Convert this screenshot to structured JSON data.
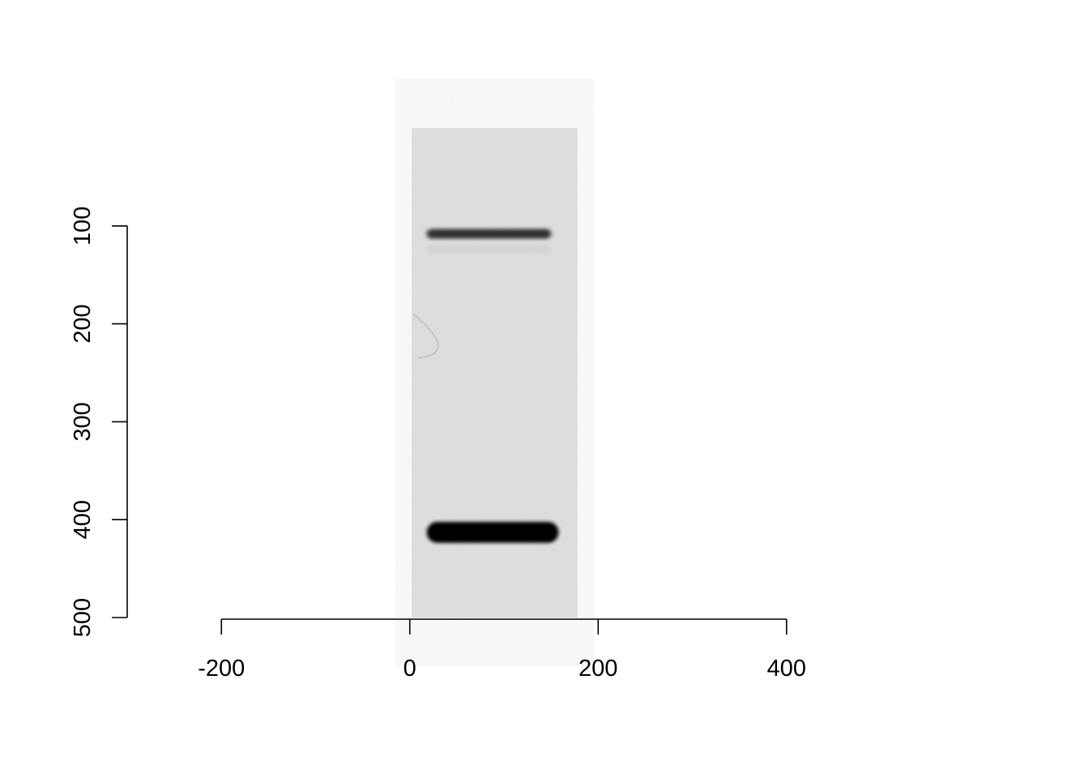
{
  "chart_data": {
    "type": "image-plot",
    "title": "",
    "xlabel": "",
    "ylabel": "",
    "xlim": [
      -300,
      500
    ],
    "ylim": [
      500,
      0
    ],
    "x_ticks": [
      -200,
      0,
      200,
      400
    ],
    "x_tick_labels": [
      "-200",
      "0",
      "200",
      "400"
    ],
    "y_ticks": [
      100,
      200,
      300,
      400,
      500
    ],
    "y_tick_labels": [
      "100",
      "200",
      "300",
      "400",
      "500"
    ],
    "y_axis_reversed": true,
    "grid": false,
    "image": {
      "description": "grayscale gel lane",
      "x_range": [
        2,
        178
      ],
      "y_range": [
        0,
        500
      ],
      "background_color": "#e4e4e4",
      "bands": [
        {
          "name": "upper band",
          "x_range": [
            18,
            150
          ],
          "y_center": 108,
          "intensity": 0.65
        },
        {
          "name": "lower band",
          "x_range": [
            18,
            158
          ],
          "y_center": 413,
          "intensity": 1.0
        }
      ]
    }
  }
}
